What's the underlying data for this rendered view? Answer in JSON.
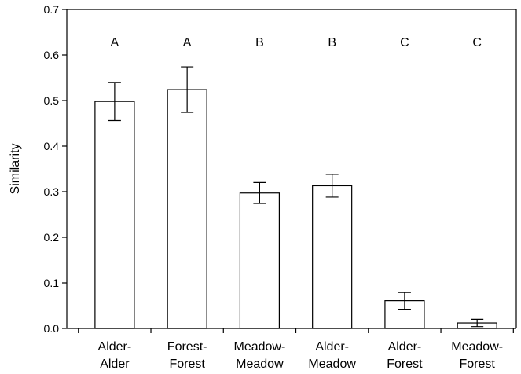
{
  "chart_data": {
    "type": "bar",
    "ylabel": "Similarity",
    "xlabel": "",
    "ylim": [
      0,
      0.7
    ],
    "yticks": [
      "0.0",
      "0.1",
      "0.2",
      "0.3",
      "0.4",
      "0.5",
      "0.6",
      "0.7"
    ],
    "categories": [
      [
        "Alder-",
        "Alder"
      ],
      [
        "Forest-",
        "Forest"
      ],
      [
        "Meadow-",
        "Meadow"
      ],
      [
        "Alder-",
        "Meadow"
      ],
      [
        "Alder-",
        "Forest"
      ],
      [
        "Meadow-",
        "Forest"
      ]
    ],
    "values": [
      0.498,
      0.524,
      0.297,
      0.313,
      0.061,
      0.012
    ],
    "error_low": [
      0.456,
      0.474,
      0.274,
      0.288,
      0.042,
      0.004
    ],
    "error_high": [
      0.54,
      0.574,
      0.32,
      0.338,
      0.079,
      0.02
    ],
    "group_letters": [
      "A",
      "A",
      "B",
      "B",
      "C",
      "C"
    ],
    "bar_fill": "#ffffff",
    "bar_stroke": "#000000"
  }
}
